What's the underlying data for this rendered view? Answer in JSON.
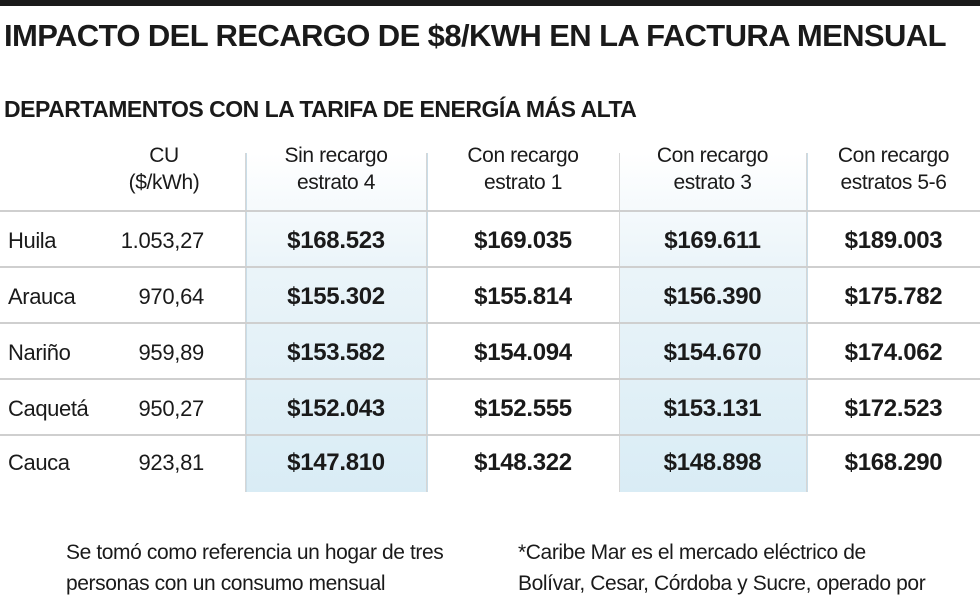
{
  "title": "IMPACTO DEL RECARGO DE $8/KWH EN LA FACTURA MENSUAL",
  "subtitle": "DEPARTAMENTOS CON LA TARIFA DE ENERGÍA MÁS ALTA",
  "colors": {
    "highlight_band": "#d9ecf5",
    "text": "#1a1a1a",
    "rule": "#cfcfcf"
  },
  "chart_data": {
    "type": "table",
    "columns": [
      {
        "line1": "CU",
        "line2": "($/kWh)"
      },
      {
        "line1": "Sin recargo",
        "line2": "estrato 4"
      },
      {
        "line1": "Con recargo",
        "line2": "estrato 1"
      },
      {
        "line1": "Con recargo",
        "line2": "estrato 3"
      },
      {
        "line1": "Con recargo",
        "line2": "estratos 5-6"
      }
    ],
    "rows": [
      {
        "departamento": "Huila",
        "cu": "1.053,27",
        "values": [
          "$168.523",
          "$169.035",
          "$169.611",
          "$189.003"
        ]
      },
      {
        "departamento": "Arauca",
        "cu": "970,64",
        "values": [
          "$155.302",
          "$155.814",
          "$156.390",
          "$175.782"
        ]
      },
      {
        "departamento": "Nariño",
        "cu": "959,89",
        "values": [
          "$153.582",
          "$154.094",
          "$154.670",
          "$174.062"
        ]
      },
      {
        "departamento": "Caquetá",
        "cu": "950,27",
        "values": [
          "$152.043",
          "$152.555",
          "$153.131",
          "$172.523"
        ]
      },
      {
        "departamento": "Cauca",
        "cu": "923,81",
        "values": [
          "$147.810",
          "$148.322",
          "$148.898",
          "$168.290"
        ]
      }
    ]
  },
  "notes": {
    "left": [
      "Se tomó como referencia un hogar de tres",
      "personas con un consumo mensual"
    ],
    "right": [
      "*Caribe Mar es el mercado eléctrico de",
      "Bolívar, Cesar, Córdoba y Sucre, operado por"
    ]
  }
}
